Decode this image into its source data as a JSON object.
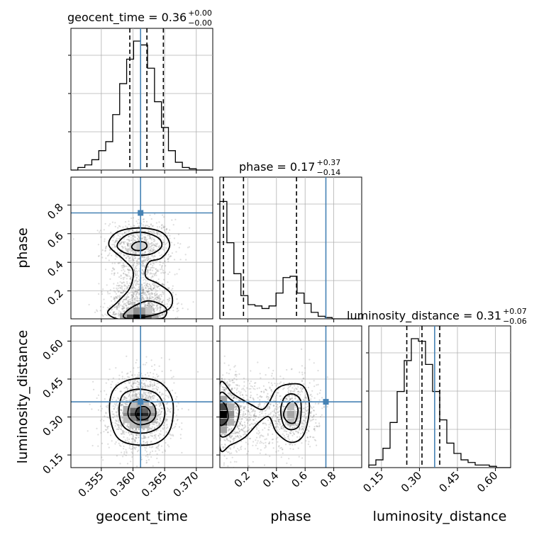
{
  "chart_data": {
    "type": "corner",
    "parameters": [
      {
        "name": "geocent_time",
        "range": [
          0.3502,
          0.3726
        ],
        "ticks": [
          0.355,
          0.36,
          0.365,
          0.37
        ],
        "tick_labels": [
          "0.355",
          "0.360",
          "0.365",
          "0.370"
        ],
        "truth": 0.3612,
        "quantiles": [
          0.3595,
          0.3622,
          0.3648
        ]
      },
      {
        "name": "phase",
        "range": [
          0.005,
          0.995
        ],
        "ticks": [
          0.2,
          0.4,
          0.6,
          0.8
        ],
        "tick_labels": [
          "0.2",
          "0.4",
          "0.6",
          "0.8"
        ],
        "truth": 0.745,
        "quantiles": [
          0.03,
          0.17,
          0.54
        ]
      },
      {
        "name": "luminosity_distance",
        "range": [
          0.1,
          0.66
        ],
        "ticks": [
          0.15,
          0.3,
          0.45,
          0.6
        ],
        "tick_labels": [
          "0.15",
          "0.30",
          "0.45",
          "0.60"
        ],
        "truth": 0.36,
        "quantiles": [
          0.25,
          0.31,
          0.38
        ]
      }
    ],
    "titles": [
      {
        "main": "geocent_time = 0.36",
        "sup": "+0.00",
        "sub": "−0.00"
      },
      {
        "main": "phase = 0.17",
        "sup": "+0.37",
        "sub": "−0.14"
      },
      {
        "main": "luminosity_distance = 0.31",
        "sup": "+0.07",
        "sub": "−0.06"
      }
    ],
    "histograms": [
      {
        "bins": [
          0.3502,
          0.3513,
          0.3524,
          0.3535,
          0.3546,
          0.3557,
          0.3568,
          0.3579,
          0.359,
          0.3601,
          0.3612,
          0.3623,
          0.3634,
          0.3645,
          0.3656,
          0.3667,
          0.3678,
          0.3689,
          0.37,
          0.3711,
          0.3722
        ],
        "counts": [
          0.0,
          0.02,
          0.04,
          0.08,
          0.15,
          0.22,
          0.43,
          0.67,
          0.86,
          1.0,
          0.97,
          0.79,
          0.53,
          0.33,
          0.15,
          0.06,
          0.02,
          0.01,
          0.0,
          0.0
        ]
      },
      {
        "bins": [
          0.005,
          0.054,
          0.103,
          0.152,
          0.201,
          0.25,
          0.299,
          0.348,
          0.397,
          0.446,
          0.495,
          0.544,
          0.593,
          0.642,
          0.691,
          0.74,
          0.789,
          0.838,
          0.887,
          0.936,
          0.985
        ],
        "counts": [
          0.91,
          0.59,
          0.35,
          0.18,
          0.11,
          0.1,
          0.08,
          0.1,
          0.2,
          0.32,
          0.33,
          0.2,
          0.12,
          0.05,
          0.02,
          0.01,
          0.0,
          0.0,
          0.0,
          0.0
        ]
      },
      {
        "bins": [
          0.1,
          0.128,
          0.156,
          0.184,
          0.212,
          0.24,
          0.268,
          0.296,
          0.324,
          0.352,
          0.38,
          0.408,
          0.436,
          0.464,
          0.492,
          0.52,
          0.548,
          0.576,
          0.604,
          0.632,
          0.66
        ],
        "counts": [
          0.02,
          0.06,
          0.15,
          0.35,
          0.59,
          0.83,
          1.0,
          0.98,
          0.8,
          0.59,
          0.37,
          0.19,
          0.11,
          0.06,
          0.04,
          0.02,
          0.02,
          0.01,
          0.0,
          0.0
        ]
      }
    ],
    "contours_2d": [
      {
        "x": "geocent_time",
        "y": "phase",
        "levels": [
          [
            [
              0.3562,
              0.52
            ],
            [
              0.3575,
              0.61
            ],
            [
              0.361,
              0.64
            ],
            [
              0.3645,
              0.61
            ],
            [
              0.3658,
              0.52
            ],
            [
              0.3645,
              0.43
            ],
            [
              0.3625,
              0.4
            ],
            [
              0.362,
              0.3
            ],
            [
              0.364,
              0.25
            ],
            [
              0.366,
              0.18
            ],
            [
              0.366,
              0.09
            ],
            [
              0.364,
              0.04
            ],
            [
              0.36,
              0.005
            ],
            [
              0.3575,
              0.005
            ],
            [
              0.356,
              0.05
            ],
            [
              0.3575,
              0.12
            ],
            [
              0.3595,
              0.22
            ],
            [
              0.36,
              0.34
            ],
            [
              0.3585,
              0.42
            ]
          ],
          [
            [
              0.3575,
              0.52
            ],
            [
              0.359,
              0.59
            ],
            [
              0.3615,
              0.61
            ],
            [
              0.364,
              0.57
            ],
            [
              0.3645,
              0.51
            ],
            [
              0.363,
              0.46
            ],
            [
              0.3605,
              0.45
            ],
            [
              0.3585,
              0.47
            ]
          ],
          [
            [
              0.3598,
              0.51
            ],
            [
              0.3605,
              0.54
            ],
            [
              0.3618,
              0.54
            ],
            [
              0.3622,
              0.51
            ],
            [
              0.3615,
              0.485
            ],
            [
              0.3603,
              0.485
            ]
          ],
          [
            [
              0.3585,
              0.03
            ],
            [
              0.36,
              0.09
            ],
            [
              0.3625,
              0.13
            ],
            [
              0.365,
              0.09
            ],
            [
              0.3652,
              0.03
            ],
            [
              0.364,
              0.005
            ],
            [
              0.3595,
              0.005
            ]
          ]
        ]
      },
      {
        "x": "geocent_time",
        "y": "luminosity_distance",
        "levels": [
          [
            [
              0.3563,
              0.32
            ],
            [
              0.357,
              0.41
            ],
            [
              0.36,
              0.45
            ],
            [
              0.364,
              0.44
            ],
            [
              0.3662,
              0.37
            ],
            [
              0.366,
              0.26
            ],
            [
              0.364,
              0.2
            ],
            [
              0.3605,
              0.19
            ],
            [
              0.3575,
              0.22
            ]
          ],
          [
            [
              0.3578,
              0.33
            ],
            [
              0.3585,
              0.39
            ],
            [
              0.361,
              0.41
            ],
            [
              0.3638,
              0.39
            ],
            [
              0.365,
              0.33
            ],
            [
              0.3645,
              0.27
            ],
            [
              0.3625,
              0.24
            ],
            [
              0.36,
              0.24
            ],
            [
              0.3583,
              0.27
            ]
          ],
          [
            [
              0.3592,
              0.32
            ],
            [
              0.3598,
              0.36
            ],
            [
              0.3615,
              0.37
            ],
            [
              0.3632,
              0.35
            ],
            [
              0.3636,
              0.31
            ],
            [
              0.3628,
              0.28
            ],
            [
              0.361,
              0.27
            ],
            [
              0.3596,
              0.29
            ]
          ],
          [
            [
              0.3604,
              0.31
            ],
            [
              0.3608,
              0.335
            ],
            [
              0.362,
              0.34
            ],
            [
              0.3627,
              0.32
            ],
            [
              0.3623,
              0.295
            ],
            [
              0.361,
              0.29
            ]
          ]
        ]
      },
      {
        "x": "phase",
        "y": "luminosity_distance",
        "levels": [
          [
            [
              0.005,
              0.43
            ],
            [
              0.1,
              0.39
            ],
            [
              0.22,
              0.35
            ],
            [
              0.3,
              0.33
            ],
            [
              0.35,
              0.36
            ],
            [
              0.4,
              0.41
            ],
            [
              0.49,
              0.43
            ],
            [
              0.59,
              0.42
            ],
            [
              0.63,
              0.34
            ],
            [
              0.59,
              0.23
            ],
            [
              0.5,
              0.2
            ],
            [
              0.4,
              0.24
            ],
            [
              0.35,
              0.3
            ],
            [
              0.28,
              0.28
            ],
            [
              0.18,
              0.22
            ],
            [
              0.08,
              0.19
            ],
            [
              0.005,
              0.18
            ]
          ],
          [
            [
              0.005,
              0.39
            ],
            [
              0.08,
              0.37
            ],
            [
              0.14,
              0.33
            ],
            [
              0.1,
              0.25
            ],
            [
              0.005,
              0.23
            ]
          ],
          [
            [
              0.43,
              0.33
            ],
            [
              0.46,
              0.38
            ],
            [
              0.52,
              0.39
            ],
            [
              0.57,
              0.36
            ],
            [
              0.56,
              0.27
            ],
            [
              0.5,
              0.25
            ],
            [
              0.45,
              0.27
            ]
          ],
          [
            [
              0.005,
              0.36
            ],
            [
              0.05,
              0.34
            ],
            [
              0.06,
              0.29
            ],
            [
              0.005,
              0.27
            ]
          ],
          [
            [
              0.45,
              0.31
            ],
            [
              0.48,
              0.35
            ],
            [
              0.52,
              0.36
            ],
            [
              0.55,
              0.33
            ],
            [
              0.53,
              0.28
            ],
            [
              0.48,
              0.28
            ]
          ]
        ]
      }
    ],
    "density_cells": [
      {
        "x": "geocent_time",
        "y": "phase",
        "cells": [
          [
            0.3605,
            0.02,
            1.0
          ],
          [
            0.3615,
            0.02,
            0.9
          ],
          [
            0.3595,
            0.02,
            0.7
          ],
          [
            0.3625,
            0.02,
            0.6
          ],
          [
            0.3585,
            0.02,
            0.3
          ],
          [
            0.3635,
            0.02,
            0.3
          ],
          [
            0.3605,
            0.06,
            0.4
          ],
          [
            0.3615,
            0.06,
            0.35
          ],
          [
            0.3595,
            0.06,
            0.2
          ],
          [
            0.3625,
            0.06,
            0.15
          ],
          [
            0.361,
            0.51,
            0.15
          ],
          [
            0.36,
            0.51,
            0.08
          ],
          [
            0.362,
            0.51,
            0.08
          ]
        ]
      },
      {
        "x": "geocent_time",
        "y": "luminosity_distance",
        "cells": [
          [
            0.361,
            0.31,
            1.0
          ],
          [
            0.362,
            0.31,
            0.85
          ],
          [
            0.36,
            0.31,
            0.75
          ],
          [
            0.361,
            0.33,
            0.8
          ],
          [
            0.362,
            0.33,
            0.6
          ],
          [
            0.36,
            0.33,
            0.55
          ],
          [
            0.361,
            0.29,
            0.7
          ],
          [
            0.362,
            0.29,
            0.55
          ],
          [
            0.36,
            0.29,
            0.45
          ],
          [
            0.359,
            0.31,
            0.4
          ],
          [
            0.363,
            0.31,
            0.4
          ],
          [
            0.359,
            0.33,
            0.25
          ],
          [
            0.363,
            0.33,
            0.25
          ],
          [
            0.359,
            0.29,
            0.2
          ],
          [
            0.363,
            0.29,
            0.2
          ],
          [
            0.361,
            0.35,
            0.3
          ],
          [
            0.361,
            0.27,
            0.3
          ],
          [
            0.362,
            0.35,
            0.2
          ],
          [
            0.36,
            0.35,
            0.2
          ],
          [
            0.362,
            0.27,
            0.2
          ],
          [
            0.36,
            0.27,
            0.2
          ]
        ]
      },
      {
        "x": "phase",
        "y": "luminosity_distance",
        "cells": [
          [
            0.03,
            0.31,
            1.0
          ],
          [
            0.03,
            0.34,
            0.7
          ],
          [
            0.03,
            0.28,
            0.7
          ],
          [
            0.03,
            0.37,
            0.3
          ],
          [
            0.03,
            0.25,
            0.3
          ],
          [
            0.08,
            0.31,
            0.4
          ],
          [
            0.08,
            0.34,
            0.25
          ],
          [
            0.08,
            0.28,
            0.25
          ],
          [
            0.5,
            0.31,
            0.3
          ],
          [
            0.5,
            0.34,
            0.2
          ],
          [
            0.5,
            0.28,
            0.2
          ],
          [
            0.45,
            0.31,
            0.12
          ],
          [
            0.55,
            0.31,
            0.12
          ]
        ]
      }
    ],
    "scatter_density": [
      {
        "x": "geocent_time",
        "y": "phase",
        "blobs": [
          {
            "cx": 0.3611,
            "cy": 0.52,
            "sx": 0.0026,
            "sy": 0.09,
            "n": 700
          },
          {
            "cx": 0.3612,
            "cy": 0.08,
            "sx": 0.0026,
            "sy": 0.1,
            "n": 1000
          },
          {
            "cx": 0.3612,
            "cy": 0.28,
            "sx": 0.0022,
            "sy": 0.12,
            "n": 400
          }
        ]
      },
      {
        "x": "geocent_time",
        "y": "luminosity_distance",
        "blobs": [
          {
            "cx": 0.3612,
            "cy": 0.315,
            "sx": 0.0025,
            "sy": 0.075,
            "n": 1500
          }
        ]
      },
      {
        "x": "phase",
        "y": "luminosity_distance",
        "blobs": [
          {
            "cx": 0.05,
            "cy": 0.31,
            "sx": 0.08,
            "sy": 0.075,
            "n": 900
          },
          {
            "cx": 0.51,
            "cy": 0.32,
            "sx": 0.09,
            "sy": 0.075,
            "n": 700
          },
          {
            "cx": 0.25,
            "cy": 0.31,
            "sx": 0.1,
            "sy": 0.07,
            "n": 250
          }
        ]
      }
    ],
    "grid": true
  }
}
